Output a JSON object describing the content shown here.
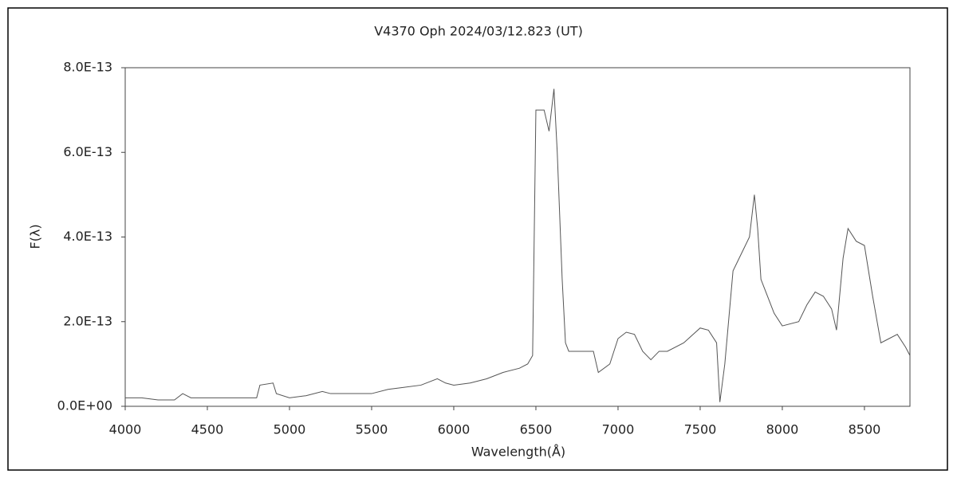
{
  "chart_data": {
    "type": "line",
    "title": "V4370 Oph    2024/03/12.823 (UT)",
    "xlabel": "Wavelength(Å)",
    "ylabel": "F(λ)",
    "x": [
      4000,
      4100,
      4200,
      4300,
      4350,
      4400,
      4500,
      4600,
      4700,
      4800,
      4820,
      4900,
      4920,
      5000,
      5100,
      5200,
      5250,
      5400,
      5500,
      5600,
      5700,
      5800,
      5900,
      5950,
      6000,
      6100,
      6200,
      6300,
      6400,
      6450,
      6480,
      6500,
      6550,
      6580,
      6610,
      6630,
      6660,
      6680,
      6700,
      6800,
      6850,
      6880,
      6950,
      7000,
      7050,
      7100,
      7150,
      7200,
      7250,
      7300,
      7400,
      7500,
      7550,
      7600,
      7620,
      7650,
      7700,
      7750,
      7800,
      7830,
      7850,
      7870,
      7900,
      7950,
      8000,
      8100,
      8150,
      8200,
      8250,
      8300,
      8330,
      8370,
      8400,
      8450,
      8500,
      8550,
      8600,
      8650,
      8700,
      8750,
      8777
    ],
    "series": [
      {
        "name": "F(λ)",
        "color": "#555555",
        "values": [
          2e-14,
          2e-14,
          1.5e-14,
          1.5e-14,
          3e-14,
          2e-14,
          2e-14,
          2e-14,
          2e-14,
          2e-14,
          5e-14,
          5.5e-14,
          3e-14,
          2e-14,
          2.5e-14,
          3.5e-14,
          3e-14,
          3e-14,
          3e-14,
          4e-14,
          4.5e-14,
          5e-14,
          6.5e-14,
          5.5e-14,
          5e-14,
          5.5e-14,
          6.5e-14,
          8e-14,
          9e-14,
          1e-13,
          1.2e-13,
          7e-13,
          7e-13,
          6.5e-13,
          7.5e-13,
          6e-13,
          3e-13,
          1.5e-13,
          1.3e-13,
          1.3e-13,
          1.3e-13,
          8e-14,
          1e-13,
          1.6e-13,
          1.75e-13,
          1.7e-13,
          1.3e-13,
          1.1e-13,
          1.3e-13,
          1.3e-13,
          1.5e-13,
          1.85e-13,
          1.8e-13,
          1.5e-13,
          1e-14,
          1e-13,
          3.2e-13,
          3.6e-13,
          4e-13,
          5e-13,
          4.2e-13,
          3e-13,
          2.7e-13,
          2.2e-13,
          1.9e-13,
          2e-13,
          2.4e-13,
          2.7e-13,
          2.6e-13,
          2.3e-13,
          1.8e-13,
          3.5e-13,
          4.2e-13,
          3.9e-13,
          3.8e-13,
          2.6e-13,
          1.5e-13,
          1.6e-13,
          1.7e-13,
          1.4e-13,
          1.2e-13
        ]
      }
    ],
    "xlim": [
      4000,
      8777
    ],
    "xticks": [
      4000,
      4500,
      5000,
      5500,
      6000,
      6500,
      7000,
      7500,
      8000,
      8500
    ],
    "ylim": [
      0,
      8e-13
    ],
    "yticks": [
      {
        "value": 0,
        "label": "0.0E+00"
      },
      {
        "value": 2e-13,
        "label": "2.0E-13"
      },
      {
        "value": 4e-13,
        "label": "4.0E-13"
      },
      {
        "value": 6e-13,
        "label": "6.0E-13"
      },
      {
        "value": 8e-13,
        "label": "8.0E-13"
      }
    ],
    "grid": false
  }
}
